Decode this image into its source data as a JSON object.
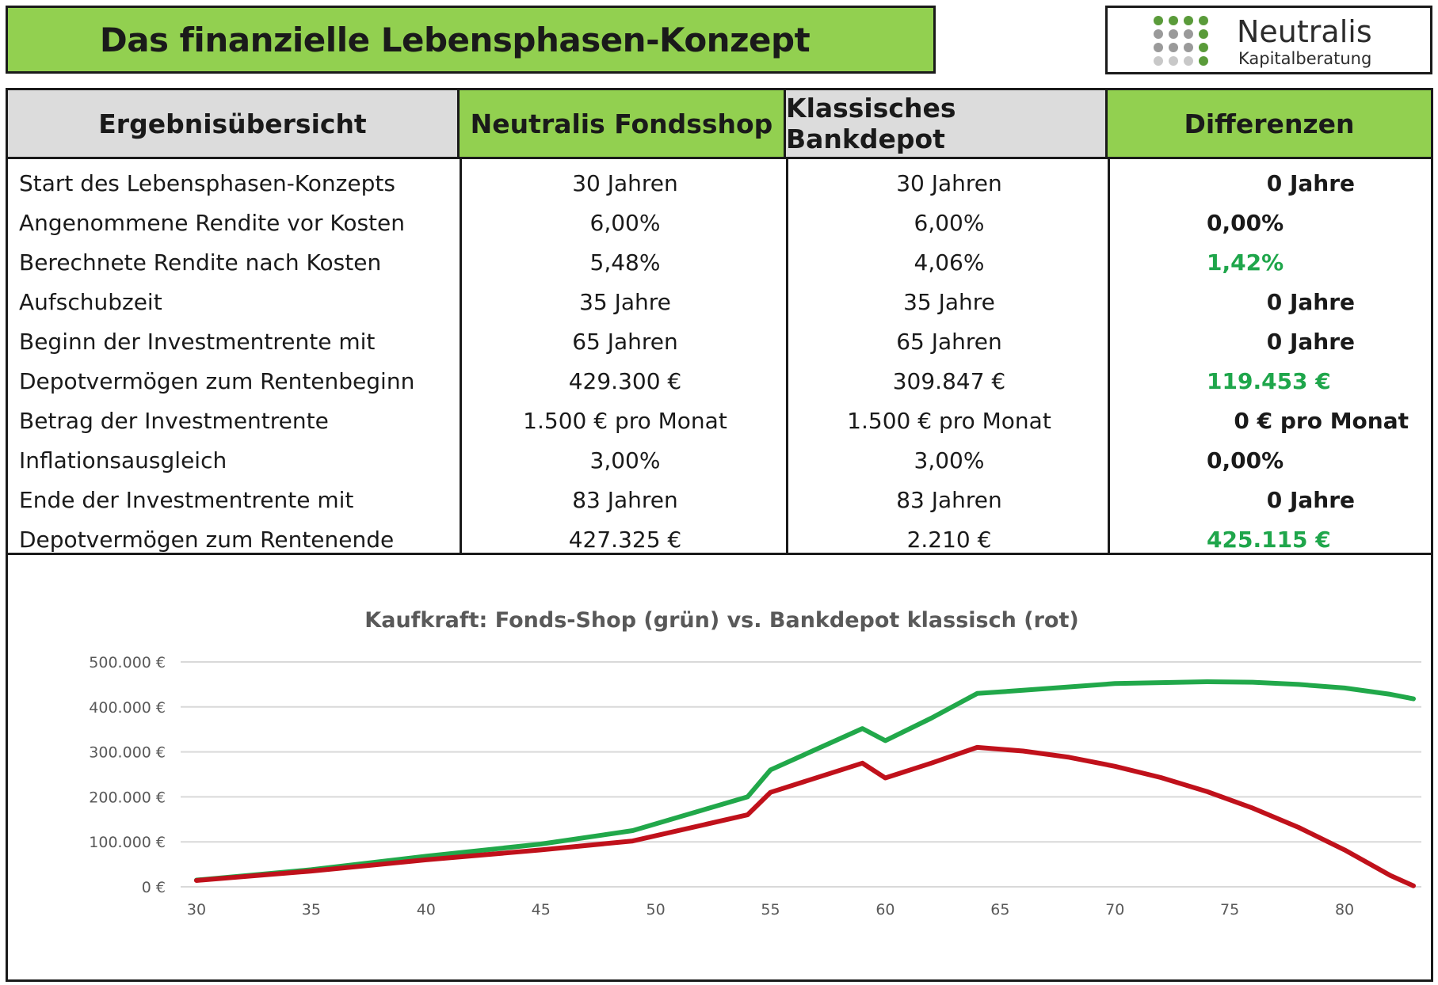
{
  "title": "Das finanzielle Lebensphasen-Konzept",
  "logo": {
    "name": "Neutralis",
    "subtitle": "Kapitalberatung",
    "dot_colors": [
      "#5a9b3a",
      "#9a9a9a",
      "#c8c8c8"
    ]
  },
  "table": {
    "headers": [
      "Ergebnisübersicht",
      "Neutralis Fondsshop",
      "Klassisches Bankdepot",
      "Differenzen"
    ],
    "rows": [
      {
        "label": "Start des Lebensphasen-Konzepts",
        "fonds": "30 Jahren",
        "bank": "30 Jahren",
        "diff": "0 Jahre",
        "diff_green": false,
        "diff_align": "right"
      },
      {
        "label": "Angenommene Rendite vor Kosten",
        "fonds": "6,00%",
        "bank": "6,00%",
        "diff": "0,00%",
        "diff_green": false,
        "diff_align": "left"
      },
      {
        "label": "Berechnete Rendite nach Kosten",
        "fonds": "5,48%",
        "bank": "4,06%",
        "diff": "1,42%",
        "diff_green": true,
        "diff_align": "left"
      },
      {
        "label": "Aufschubzeit",
        "fonds": "35    Jahre",
        "bank": "35   Jahre",
        "diff": "0 Jahre",
        "diff_green": false,
        "diff_align": "right"
      },
      {
        "label": "Beginn der Investmentrente mit",
        "fonds": "65 Jahren",
        "bank": "65 Jahren",
        "diff": "0 Jahre",
        "diff_green": false,
        "diff_align": "right"
      },
      {
        "label": "Depotvermögen zum Rentenbeginn",
        "fonds": "429.300 €",
        "bank": "309.847 €",
        "diff": "119.453 €",
        "diff_green": true,
        "diff_align": "left"
      },
      {
        "label": "Betrag der Investmentrente",
        "fonds": "1.500 € pro Monat",
        "bank": "1.500 € pro Monat",
        "diff": "0 € pro Monat",
        "diff_green": false,
        "diff_align": "far"
      },
      {
        "label": "Inflationsausgleich",
        "fonds": "3,00%",
        "bank": "3,00%",
        "diff": "0,00%",
        "diff_green": false,
        "diff_align": "left"
      },
      {
        "label": "Ende der Investmentrente mit",
        "fonds": "83 Jahren",
        "bank": "83 Jahren",
        "diff": "0 Jahre",
        "diff_green": false,
        "diff_align": "right"
      },
      {
        "label": "Depotvermögen zum Rentenende",
        "fonds": "427.325 €",
        "bank": "2.210 €",
        "diff": "425.115 €",
        "diff_green": true,
        "diff_align": "left"
      }
    ]
  },
  "chart_data": {
    "type": "line",
    "title": "Kaufkraft: Fonds-Shop (grün) vs. Bankdepot klassisch (rot)",
    "xlabel": "",
    "ylabel": "",
    "xlim": [
      30,
      83
    ],
    "ylim": [
      0,
      500000
    ],
    "x_ticks": [
      30,
      35,
      40,
      45,
      50,
      55,
      60,
      65,
      70,
      75,
      80
    ],
    "y_ticks": [
      0,
      100000,
      200000,
      300000,
      400000,
      500000
    ],
    "y_tick_labels": [
      "0 €",
      "100.000 €",
      "200.000 €",
      "300.000 €",
      "400.000 €",
      "500.000 €"
    ],
    "grid": true,
    "series": [
      {
        "name": "Fonds-Shop",
        "color": "#21a84a",
        "x": [
          30,
          35,
          40,
          45,
          49,
          54,
          55,
          59,
          60,
          62,
          64,
          66,
          70,
          74,
          76,
          78,
          80,
          82,
          83
        ],
        "y": [
          15000,
          38000,
          68000,
          95000,
          125000,
          200000,
          260000,
          352000,
          325000,
          375000,
          430000,
          437000,
          452000,
          456000,
          455000,
          450000,
          442000,
          428000,
          418000
        ]
      },
      {
        "name": "Bankdepot klassisch",
        "color": "#c0111b",
        "x": [
          30,
          35,
          40,
          45,
          49,
          54,
          55,
          59,
          60,
          62,
          64,
          66,
          68,
          70,
          72,
          74,
          76,
          78,
          80,
          82,
          83
        ],
        "y": [
          14000,
          35000,
          60000,
          82000,
          102000,
          160000,
          210000,
          275000,
          242000,
          275000,
          310000,
          302000,
          288000,
          268000,
          243000,
          212000,
          175000,
          132000,
          82000,
          25000,
          2210
        ]
      }
    ]
  }
}
